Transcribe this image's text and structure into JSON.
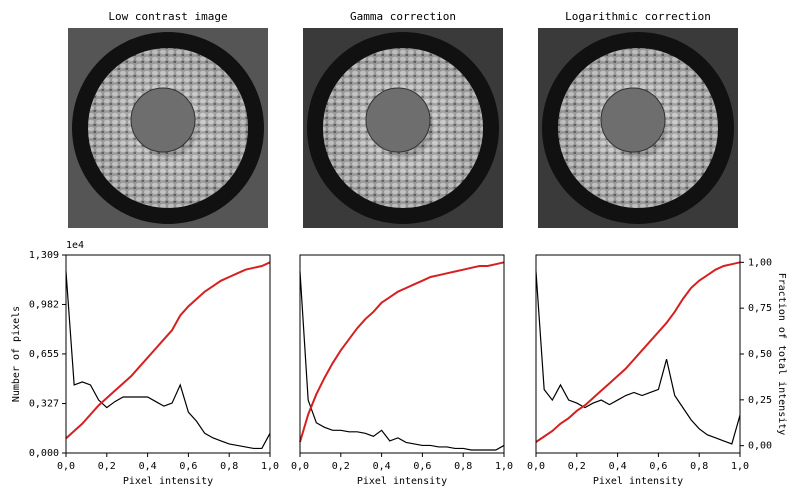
{
  "chart_data": [
    {
      "type": "line",
      "title": "Low contrast image",
      "xlabel": "Pixel intensity",
      "ylabel": "Number of pixels",
      "offset_text": "1e4",
      "x": [
        0,
        0.04,
        0.08,
        0.12,
        0.16,
        0.2,
        0.24,
        0.28,
        0.32,
        0.36,
        0.4,
        0.44,
        0.48,
        0.52,
        0.56,
        0.6,
        0.64,
        0.68,
        0.72,
        0.76,
        0.8,
        0.84,
        0.88,
        0.92,
        0.96,
        1.0
      ],
      "xlim": [
        0,
        1
      ],
      "xticks": [
        {
          "value": 0,
          "label": "0,0"
        },
        {
          "value": 0.2,
          "label": "0,2"
        },
        {
          "value": 0.4,
          "label": "0,4"
        },
        {
          "value": 0.6,
          "label": "0,6"
        },
        {
          "value": 0.8,
          "label": "0,8"
        },
        {
          "value": 1,
          "label": "1,0"
        }
      ],
      "ylim": [
        0,
        1.309
      ],
      "yticks": [
        {
          "value": 0,
          "label": "0,000"
        },
        {
          "value": 0.327,
          "label": "0,327"
        },
        {
          "value": 0.655,
          "label": "0,655"
        },
        {
          "value": 0.982,
          "label": "0,982"
        },
        {
          "value": 1.309,
          "label": "1,309"
        }
      ],
      "y2lim": [
        -0.04,
        1.04
      ],
      "series": [
        {
          "color": "#000000",
          "values": [
            1.2,
            0.45,
            0.47,
            0.45,
            0.35,
            0.3,
            0.34,
            0.37,
            0.37,
            0.37,
            0.37,
            0.34,
            0.31,
            0.33,
            0.45,
            0.27,
            0.21,
            0.13,
            0.1,
            0.08,
            0.06,
            0.05,
            0.04,
            0.03,
            0.03,
            0.13
          ]
        },
        {
          "color": "#d62020",
          "axis": "y2",
          "values": [
            0.04,
            0.08,
            0.12,
            0.17,
            0.22,
            0.26,
            0.3,
            0.34,
            0.38,
            0.43,
            0.48,
            0.53,
            0.58,
            0.63,
            0.71,
            0.76,
            0.8,
            0.84,
            0.87,
            0.9,
            0.92,
            0.94,
            0.96,
            0.97,
            0.98,
            1.0
          ]
        }
      ]
    },
    {
      "type": "line",
      "title": "Gamma correction",
      "xlabel": "Pixel intensity",
      "x": [
        0,
        0.04,
        0.08,
        0.12,
        0.16,
        0.2,
        0.24,
        0.28,
        0.32,
        0.36,
        0.4,
        0.44,
        0.48,
        0.52,
        0.56,
        0.6,
        0.64,
        0.68,
        0.72,
        0.76,
        0.8,
        0.84,
        0.88,
        0.92,
        0.96,
        1.0
      ],
      "xlim": [
        0,
        1
      ],
      "xticks": [
        {
          "value": 0,
          "label": "0,0"
        },
        {
          "value": 0.2,
          "label": "0,2"
        },
        {
          "value": 0.4,
          "label": "0,4"
        },
        {
          "value": 0.6,
          "label": "0,6"
        },
        {
          "value": 0.8,
          "label": "0,8"
        },
        {
          "value": 1,
          "label": "1,0"
        }
      ],
      "ylim": [
        0,
        1.309
      ],
      "y2lim": [
        -0.04,
        1.04
      ],
      "series": [
        {
          "color": "#000000",
          "values": [
            1.2,
            0.35,
            0.2,
            0.17,
            0.15,
            0.15,
            0.14,
            0.14,
            0.13,
            0.11,
            0.15,
            0.08,
            0.1,
            0.07,
            0.06,
            0.05,
            0.05,
            0.04,
            0.04,
            0.03,
            0.03,
            0.02,
            0.02,
            0.02,
            0.02,
            0.05
          ]
        },
        {
          "color": "#d62020",
          "axis": "y2",
          "values": [
            0.02,
            0.17,
            0.28,
            0.37,
            0.45,
            0.52,
            0.58,
            0.64,
            0.69,
            0.73,
            0.78,
            0.81,
            0.84,
            0.86,
            0.88,
            0.9,
            0.92,
            0.93,
            0.94,
            0.95,
            0.96,
            0.97,
            0.98,
            0.98,
            0.99,
            1.0
          ]
        }
      ]
    },
    {
      "type": "line",
      "title": "Logarithmic correction",
      "xlabel": "Pixel intensity",
      "y2label": "Fraction of total intensity",
      "x": [
        0,
        0.04,
        0.08,
        0.12,
        0.16,
        0.2,
        0.24,
        0.28,
        0.32,
        0.36,
        0.4,
        0.44,
        0.48,
        0.52,
        0.56,
        0.6,
        0.64,
        0.68,
        0.72,
        0.76,
        0.8,
        0.84,
        0.88,
        0.92,
        0.96,
        1.0
      ],
      "xlim": [
        0,
        1
      ],
      "xticks": [
        {
          "value": 0,
          "label": "0,0"
        },
        {
          "value": 0.2,
          "label": "0,2"
        },
        {
          "value": 0.4,
          "label": "0,4"
        },
        {
          "value": 0.6,
          "label": "0,6"
        },
        {
          "value": 0.8,
          "label": "0,8"
        },
        {
          "value": 1,
          "label": "1,0"
        }
      ],
      "ylim": [
        0,
        1.309
      ],
      "y2lim": [
        -0.04,
        1.04
      ],
      "y2ticks": [
        {
          "value": 0,
          "label": "0,00"
        },
        {
          "value": 0.25,
          "label": "0,25"
        },
        {
          "value": 0.5,
          "label": "0,50"
        },
        {
          "value": 0.75,
          "label": "0,75"
        },
        {
          "value": 1,
          "label": "1,00"
        }
      ],
      "series": [
        {
          "color": "#000000",
          "values": [
            1.2,
            0.42,
            0.35,
            0.45,
            0.35,
            0.33,
            0.3,
            0.33,
            0.35,
            0.32,
            0.35,
            0.38,
            0.4,
            0.38,
            0.4,
            0.42,
            0.62,
            0.38,
            0.3,
            0.22,
            0.16,
            0.12,
            0.1,
            0.08,
            0.06,
            0.25
          ]
        },
        {
          "color": "#d62020",
          "axis": "y2",
          "values": [
            0.02,
            0.05,
            0.08,
            0.12,
            0.15,
            0.19,
            0.22,
            0.26,
            0.3,
            0.34,
            0.38,
            0.42,
            0.47,
            0.52,
            0.57,
            0.62,
            0.67,
            0.73,
            0.8,
            0.86,
            0.9,
            0.93,
            0.96,
            0.98,
            0.99,
            1.0
          ]
        }
      ]
    }
  ]
}
